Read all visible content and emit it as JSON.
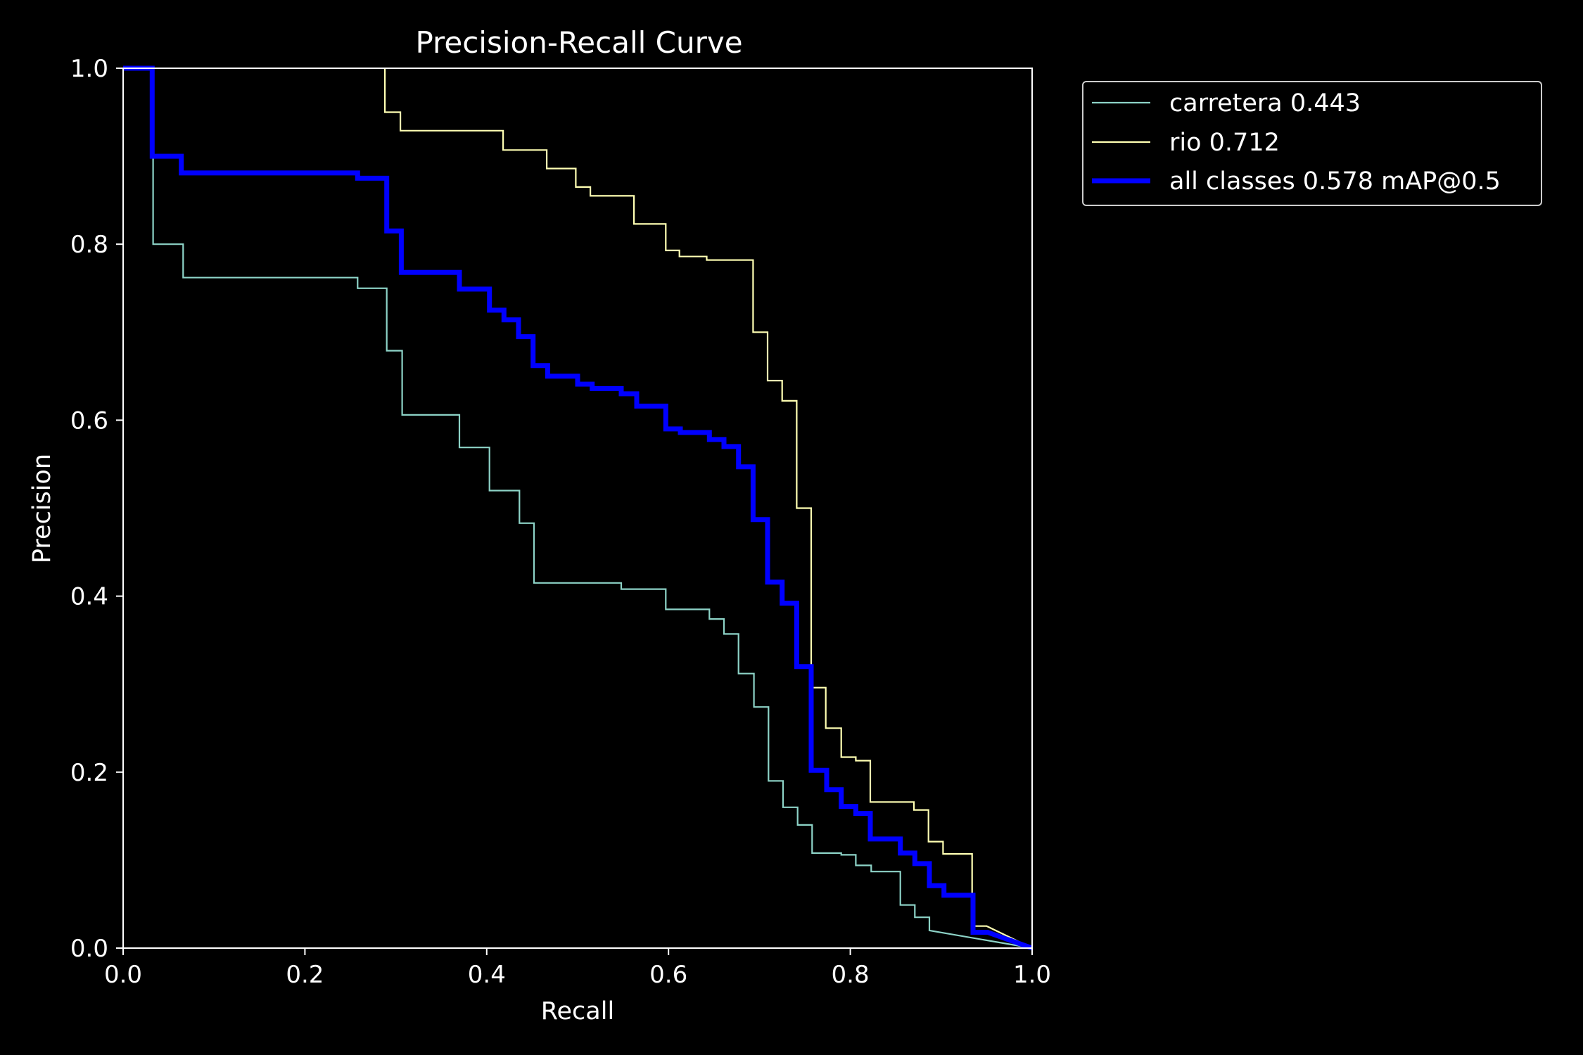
{
  "chart_data": {
    "type": "line",
    "title": "Precision-Recall Curve",
    "xlabel": "Recall",
    "ylabel": "Precision",
    "xlim": [
      0.0,
      1.0
    ],
    "ylim": [
      0.0,
      1.0
    ],
    "xticks": [
      "0.0",
      "0.2",
      "0.4",
      "0.6",
      "0.8",
      "1.0"
    ],
    "yticks": [
      "0.0",
      "0.2",
      "0.4",
      "0.6",
      "0.8",
      "1.0"
    ],
    "grid": false,
    "legend_position": "outside-top-right",
    "background": "#000000",
    "series": [
      {
        "name": "carretera 0.443",
        "color": "#8dd3c7",
        "line_width": "thin",
        "x": [
          0.0,
          0.033,
          0.033,
          0.066,
          0.066,
          0.258,
          0.258,
          0.29,
          0.29,
          0.307,
          0.307,
          0.37,
          0.37,
          0.403,
          0.403,
          0.436,
          0.436,
          0.452,
          0.452,
          0.548,
          0.548,
          0.597,
          0.597,
          0.645,
          0.645,
          0.661,
          0.661,
          0.677,
          0.677,
          0.694,
          0.694,
          0.71,
          0.71,
          0.726,
          0.726,
          0.742,
          0.742,
          0.758,
          0.758,
          0.79,
          0.79,
          0.806,
          0.806,
          0.823,
          0.823,
          0.855,
          0.855,
          0.871,
          0.871,
          0.887,
          0.887,
          1.0
        ],
        "y": [
          1.0,
          1.0,
          0.8,
          0.8,
          0.762,
          0.762,
          0.75,
          0.75,
          0.679,
          0.679,
          0.606,
          0.606,
          0.569,
          0.569,
          0.52,
          0.52,
          0.483,
          0.483,
          0.415,
          0.415,
          0.408,
          0.408,
          0.385,
          0.385,
          0.374,
          0.374,
          0.357,
          0.357,
          0.312,
          0.312,
          0.274,
          0.274,
          0.19,
          0.19,
          0.16,
          0.16,
          0.14,
          0.14,
          0.108,
          0.108,
          0.106,
          0.106,
          0.094,
          0.094,
          0.087,
          0.087,
          0.049,
          0.049,
          0.035,
          0.035,
          0.02,
          0.0
        ]
      },
      {
        "name": "rio 0.712",
        "color": "#ffffb3",
        "line_width": "thin",
        "x": [
          0.288,
          0.288,
          0.305,
          0.305,
          0.418,
          0.418,
          0.466,
          0.466,
          0.498,
          0.498,
          0.514,
          0.514,
          0.562,
          0.562,
          0.597,
          0.597,
          0.612,
          0.612,
          0.642,
          0.642,
          0.693,
          0.693,
          0.709,
          0.709,
          0.725,
          0.725,
          0.741,
          0.741,
          0.757,
          0.757,
          0.773,
          0.773,
          0.79,
          0.79,
          0.806,
          0.806,
          0.822,
          0.822,
          0.87,
          0.87,
          0.886,
          0.886,
          0.902,
          0.902,
          0.934,
          0.934,
          0.95,
          1.0
        ],
        "y": [
          1.0,
          0.95,
          0.95,
          0.929,
          0.929,
          0.907,
          0.907,
          0.886,
          0.886,
          0.865,
          0.865,
          0.855,
          0.855,
          0.823,
          0.823,
          0.793,
          0.793,
          0.786,
          0.786,
          0.782,
          0.782,
          0.7,
          0.7,
          0.645,
          0.645,
          0.622,
          0.622,
          0.5,
          0.5,
          0.296,
          0.296,
          0.25,
          0.25,
          0.217,
          0.217,
          0.213,
          0.213,
          0.166,
          0.166,
          0.157,
          0.157,
          0.121,
          0.121,
          0.107,
          0.107,
          0.025,
          0.025,
          0.0
        ]
      },
      {
        "name": "all classes 0.578 mAP@0.5",
        "color": "#0000ff",
        "line_width": "thick",
        "x": [
          0.0,
          0.032,
          0.032,
          0.064,
          0.064,
          0.258,
          0.258,
          0.29,
          0.29,
          0.306,
          0.306,
          0.37,
          0.37,
          0.403,
          0.403,
          0.419,
          0.419,
          0.435,
          0.435,
          0.451,
          0.451,
          0.467,
          0.467,
          0.5,
          0.5,
          0.516,
          0.516,
          0.548,
          0.548,
          0.565,
          0.565,
          0.597,
          0.597,
          0.613,
          0.613,
          0.645,
          0.645,
          0.661,
          0.661,
          0.677,
          0.677,
          0.693,
          0.693,
          0.709,
          0.709,
          0.725,
          0.725,
          0.741,
          0.741,
          0.757,
          0.757,
          0.774,
          0.774,
          0.79,
          0.79,
          0.806,
          0.806,
          0.822,
          0.822,
          0.855,
          0.855,
          0.871,
          0.871,
          0.887,
          0.887,
          0.903,
          0.903,
          0.935,
          0.935,
          0.951,
          1.0
        ],
        "y": [
          1.0,
          1.0,
          0.9,
          0.9,
          0.881,
          0.881,
          0.875,
          0.875,
          0.815,
          0.815,
          0.768,
          0.768,
          0.749,
          0.749,
          0.725,
          0.725,
          0.714,
          0.714,
          0.695,
          0.695,
          0.662,
          0.662,
          0.65,
          0.65,
          0.641,
          0.641,
          0.636,
          0.636,
          0.63,
          0.63,
          0.616,
          0.616,
          0.59,
          0.59,
          0.586,
          0.586,
          0.578,
          0.578,
          0.57,
          0.57,
          0.547,
          0.547,
          0.487,
          0.487,
          0.416,
          0.416,
          0.392,
          0.392,
          0.32,
          0.32,
          0.202,
          0.202,
          0.18,
          0.18,
          0.161,
          0.161,
          0.153,
          0.153,
          0.124,
          0.124,
          0.108,
          0.108,
          0.096,
          0.096,
          0.071,
          0.071,
          0.06,
          0.06,
          0.018,
          0.018,
          0.0
        ]
      }
    ]
  }
}
